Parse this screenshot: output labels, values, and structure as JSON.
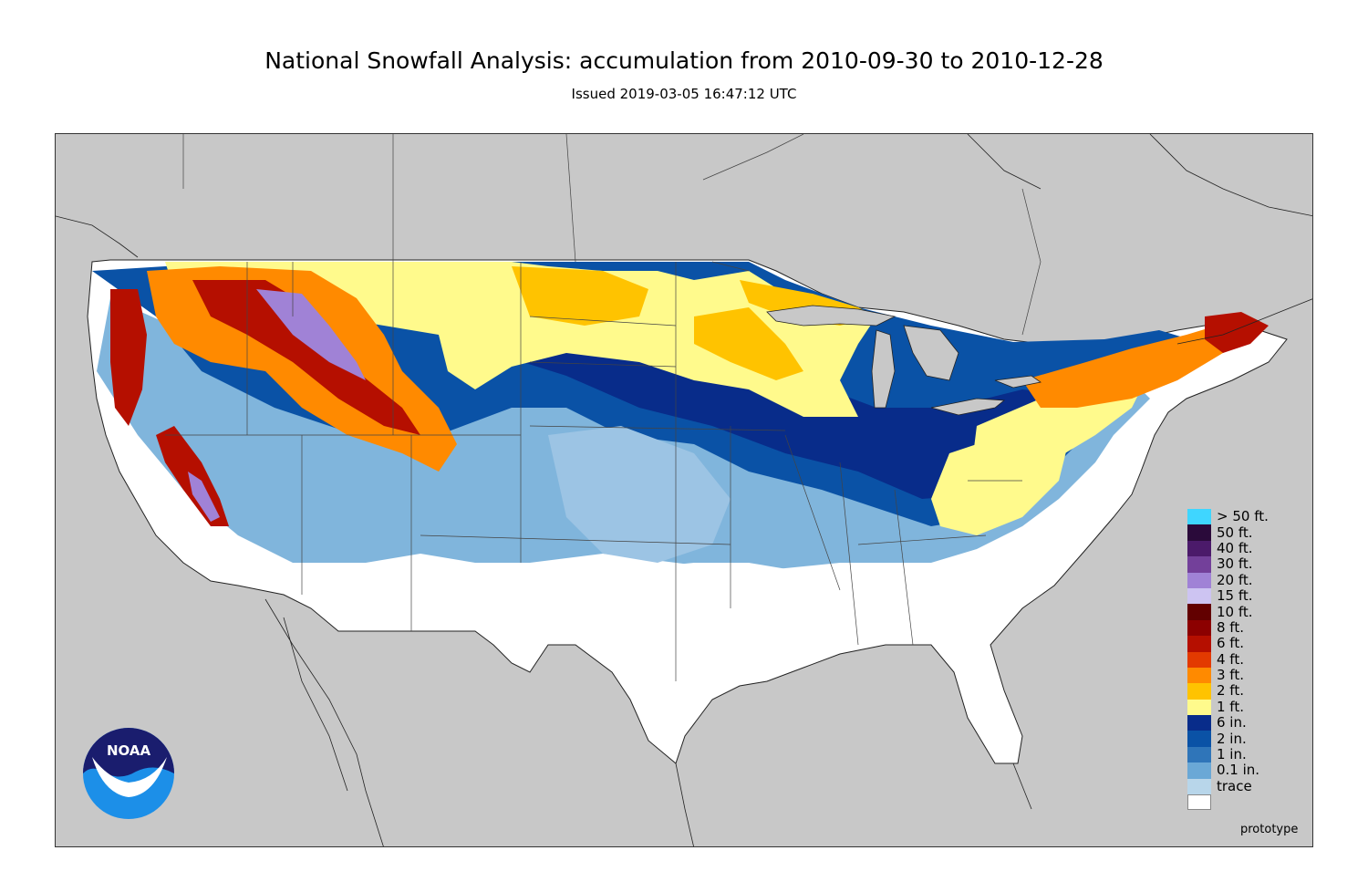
{
  "header": {
    "title": "National Snowfall Analysis: accumulation from 2010-09-30 to 2010-12-28",
    "subtitle": "Issued 2019-03-05 16:47:12 UTC"
  },
  "logo": {
    "text": "NOAA",
    "icon": "noaa-logo-icon"
  },
  "legend": [
    {
      "label": "> 50 ft.",
      "color": "#3fd6ff"
    },
    {
      "label": "50 ft.",
      "color": "#2a0a3a"
    },
    {
      "label": "40 ft.",
      "color": "#4b1a6a"
    },
    {
      "label": "30 ft.",
      "color": "#73409a"
    },
    {
      "label": "20 ft.",
      "color": "#a082d6"
    },
    {
      "label": "15 ft.",
      "color": "#cdc4f2"
    },
    {
      "label": "10 ft.",
      "color": "#620000"
    },
    {
      "label": "8 ft.",
      "color": "#8c0000"
    },
    {
      "label": "6 ft.",
      "color": "#b50f00"
    },
    {
      "label": "4 ft.",
      "color": "#e33a00"
    },
    {
      "label": "3 ft.",
      "color": "#ff8a00"
    },
    {
      "label": "2 ft.",
      "color": "#ffc300"
    },
    {
      "label": "1 ft.",
      "color": "#fffa8c"
    },
    {
      "label": "6 in.",
      "color": "#082c8a"
    },
    {
      "label": "2 in.",
      "color": "#0a52a6"
    },
    {
      "label": "1 in.",
      "color": "#2f75b9"
    },
    {
      "label": "0.1 in.",
      "color": "#6aa8d6"
    },
    {
      "label": "trace",
      "color": "#b8d6ea"
    },
    {
      "label": "",
      "color": "#ffffff"
    }
  ],
  "credit": "prototype"
}
